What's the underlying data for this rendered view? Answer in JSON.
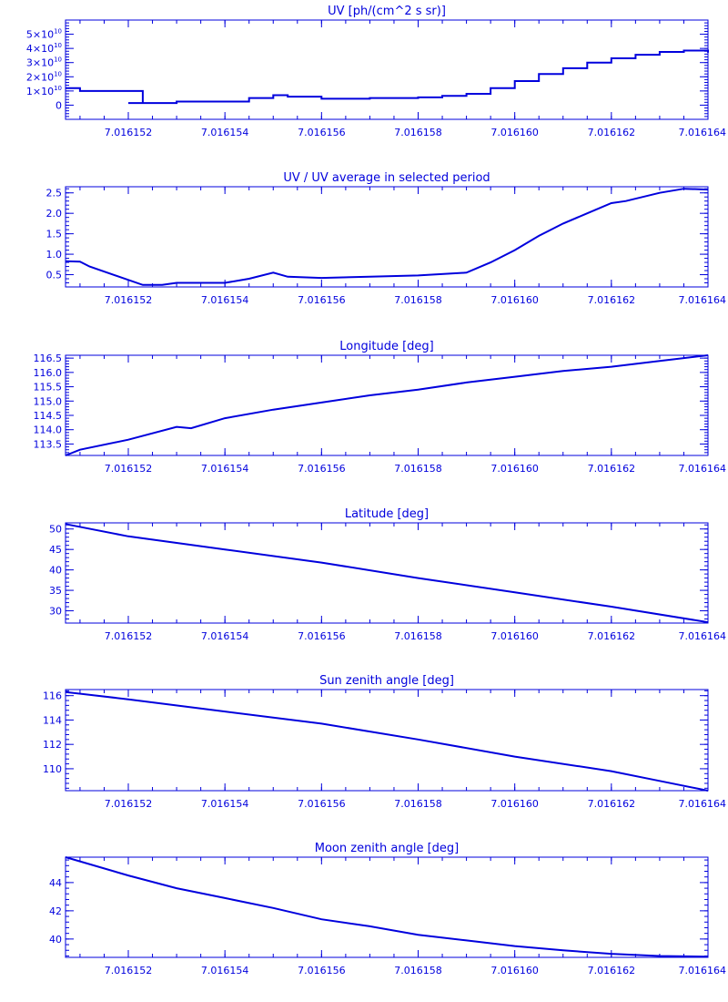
{
  "page": {
    "background": "#ffffff",
    "line_color": "#0000dd",
    "axis_color": "#0000dd"
  },
  "chart_data": [
    {
      "type": "line",
      "title": "UV [ph/(cm^2 s sr)]",
      "xlabel": "",
      "ylabel": "",
      "xlim": [
        7.0161507,
        7.016164
      ],
      "ylim": [
        -10000000000.0,
        60000000000.0
      ],
      "step": true,
      "x_ticks": [
        7.016152,
        7.016154,
        7.016156,
        7.016158,
        7.01616,
        7.016162,
        7.016164
      ],
      "x_tick_labels": [
        "7.016152",
        "7.016154",
        "7.016156",
        "7.016158",
        "7.016160",
        "7.016162",
        "7.016164"
      ],
      "y_ticks": [
        0,
        10000000000.0,
        20000000000.0,
        30000000000.0,
        40000000000.0,
        50000000000.0
      ],
      "y_tick_labels": [
        {
          "m": "0",
          "e": ""
        },
        {
          "m": "1×10",
          "e": "10"
        },
        {
          "m": "2×10",
          "e": "10"
        },
        {
          "m": "3×10",
          "e": "10"
        },
        {
          "m": "4×10",
          "e": "10"
        },
        {
          "m": "5×10",
          "e": "10"
        }
      ],
      "series": [
        {
          "x": [
            7.0161507,
            7.016151,
            7.0161517,
            7.0161523,
            7.016152,
            7.016153,
            7.016154,
            7.0161545,
            7.016155,
            7.0161553,
            7.016156,
            7.016157,
            7.016158,
            7.0161585,
            7.016159,
            7.0161595,
            7.01616,
            7.0161605,
            7.016161,
            7.0161615,
            7.016162,
            7.0161625,
            7.016163,
            7.0161635,
            7.016164
          ],
          "y": [
            12000000000.0,
            10000000000.0,
            10000000000.0,
            1500000000.0,
            1500000000.0,
            2500000000.0,
            2500000000.0,
            5000000000.0,
            7000000000.0,
            6000000000.0,
            4500000000.0,
            5000000000.0,
            5500000000.0,
            6500000000.0,
            8000000000.0,
            12000000000.0,
            17000000000.0,
            22000000000.0,
            26000000000.0,
            30000000000.0,
            33000000000.0,
            35500000000.0,
            37500000000.0,
            38500000000.0,
            37000000000.0
          ]
        }
      ]
    },
    {
      "type": "line",
      "title": "UV / UV average in selected period",
      "xlabel": "",
      "ylabel": "",
      "xlim": [
        7.0161507,
        7.016164
      ],
      "ylim": [
        0.2,
        2.65
      ],
      "x_ticks": [
        7.016152,
        7.016154,
        7.016156,
        7.016158,
        7.01616,
        7.016162,
        7.016164
      ],
      "x_tick_labels": [
        "7.016152",
        "7.016154",
        "7.016156",
        "7.016158",
        "7.016160",
        "7.016162",
        "7.016164"
      ],
      "y_ticks": [
        0.5,
        1.0,
        1.5,
        2.0,
        2.5
      ],
      "y_tick_labels": [
        "0.5",
        "1.0",
        "1.5",
        "2.0",
        "2.5"
      ],
      "series": [
        {
          "x": [
            7.0161507,
            7.016151,
            7.0161512,
            7.0161523,
            7.0161527,
            7.016153,
            7.016154,
            7.0161545,
            7.016155,
            7.0161553,
            7.016156,
            7.016157,
            7.016158,
            7.016159,
            7.0161595,
            7.01616,
            7.0161605,
            7.016161,
            7.0161615,
            7.016162,
            7.0161623,
            7.016163,
            7.0161635,
            7.016164
          ],
          "y": [
            0.83,
            0.82,
            0.7,
            0.25,
            0.25,
            0.3,
            0.3,
            0.4,
            0.55,
            0.45,
            0.42,
            0.45,
            0.48,
            0.55,
            0.8,
            1.1,
            1.45,
            1.75,
            2.0,
            2.25,
            2.3,
            2.5,
            2.6,
            2.58
          ]
        }
      ]
    },
    {
      "type": "line",
      "title": "Longitude [deg]",
      "xlabel": "",
      "ylabel": "",
      "xlim": [
        7.0161507,
        7.016164
      ],
      "ylim": [
        113.1,
        116.6
      ],
      "x_ticks": [
        7.016152,
        7.016154,
        7.016156,
        7.016158,
        7.01616,
        7.016162,
        7.016164
      ],
      "x_tick_labels": [
        "7.016152",
        "7.016154",
        "7.016156",
        "7.016158",
        "7.016160",
        "7.016162",
        "7.016164"
      ],
      "y_ticks": [
        113.5,
        114.0,
        114.5,
        115.0,
        115.5,
        116.0,
        116.5
      ],
      "y_tick_labels": [
        "113.5",
        "114.0",
        "114.5",
        "115.0",
        "115.5",
        "116.0",
        "116.5"
      ],
      "series": [
        {
          "x": [
            7.0161507,
            7.016151,
            7.016152,
            7.016153,
            7.0161533,
            7.016154,
            7.016155,
            7.016156,
            7.016157,
            7.016158,
            7.016159,
            7.01616,
            7.016161,
            7.016162,
            7.016163,
            7.016164
          ],
          "y": [
            113.1,
            113.3,
            113.65,
            114.1,
            114.05,
            114.4,
            114.7,
            114.95,
            115.2,
            115.4,
            115.65,
            115.85,
            116.05,
            116.2,
            116.4,
            116.6
          ]
        }
      ]
    },
    {
      "type": "line",
      "title": "Latitude [deg]",
      "xlabel": "",
      "ylabel": "",
      "xlim": [
        7.0161507,
        7.016164
      ],
      "ylim": [
        27.0,
        51.5
      ],
      "x_ticks": [
        7.016152,
        7.016154,
        7.016156,
        7.016158,
        7.01616,
        7.016162,
        7.016164
      ],
      "x_tick_labels": [
        "7.016152",
        "7.016154",
        "7.016156",
        "7.016158",
        "7.016160",
        "7.016162",
        "7.016164"
      ],
      "y_ticks": [
        30,
        35,
        40,
        45,
        50
      ],
      "y_tick_labels": [
        "30",
        "35",
        "40",
        "45",
        "50"
      ],
      "series": [
        {
          "x": [
            7.0161507,
            7.016152,
            7.016154,
            7.016156,
            7.016158,
            7.01616,
            7.016162,
            7.016164
          ],
          "y": [
            51.2,
            48.2,
            45.0,
            41.8,
            38.0,
            34.5,
            31.0,
            27.2
          ]
        }
      ]
    },
    {
      "type": "line",
      "title": "Sun zenith angle [deg]",
      "xlabel": "",
      "ylabel": "",
      "xlim": [
        7.0161507,
        7.016164
      ],
      "ylim": [
        108.2,
        116.5
      ],
      "x_ticks": [
        7.016152,
        7.016154,
        7.016156,
        7.016158,
        7.01616,
        7.016162,
        7.016164
      ],
      "x_tick_labels": [
        "7.016152",
        "7.016154",
        "7.016156",
        "7.016158",
        "7.016160",
        "7.016162",
        "7.016164"
      ],
      "y_ticks": [
        110,
        112,
        114,
        116
      ],
      "y_tick_labels": [
        "110",
        "112",
        "114",
        "116"
      ],
      "series": [
        {
          "x": [
            7.0161507,
            7.016152,
            7.016154,
            7.016156,
            7.016158,
            7.01616,
            7.016162,
            7.016163,
            7.016164
          ],
          "y": [
            116.3,
            115.7,
            114.7,
            113.7,
            112.4,
            111.0,
            109.8,
            109.0,
            108.2
          ]
        }
      ]
    },
    {
      "type": "line",
      "title": "Moon zenith angle [deg]",
      "xlabel": "",
      "ylabel": "",
      "xlim": [
        7.0161507,
        7.016164
      ],
      "ylim": [
        38.7,
        45.8
      ],
      "x_ticks": [
        7.016152,
        7.016154,
        7.016156,
        7.016158,
        7.01616,
        7.016162,
        7.016164
      ],
      "x_tick_labels": [
        "7.016152",
        "7.016154",
        "7.016156",
        "7.016158",
        "7.016160",
        "7.016162",
        "7.016164"
      ],
      "y_ticks": [
        40,
        42,
        44
      ],
      "y_tick_labels": [
        "40",
        "42",
        "44"
      ],
      "series": [
        {
          "x": [
            7.0161507,
            7.016152,
            7.016153,
            7.016154,
            7.016155,
            7.016156,
            7.016157,
            7.016158,
            7.016159,
            7.01616,
            7.016161,
            7.016162,
            7.016163,
            7.016164
          ],
          "y": [
            45.8,
            44.5,
            43.6,
            42.9,
            42.2,
            41.4,
            40.9,
            40.3,
            39.9,
            39.5,
            39.2,
            38.95,
            38.8,
            38.75
          ]
        }
      ]
    }
  ]
}
